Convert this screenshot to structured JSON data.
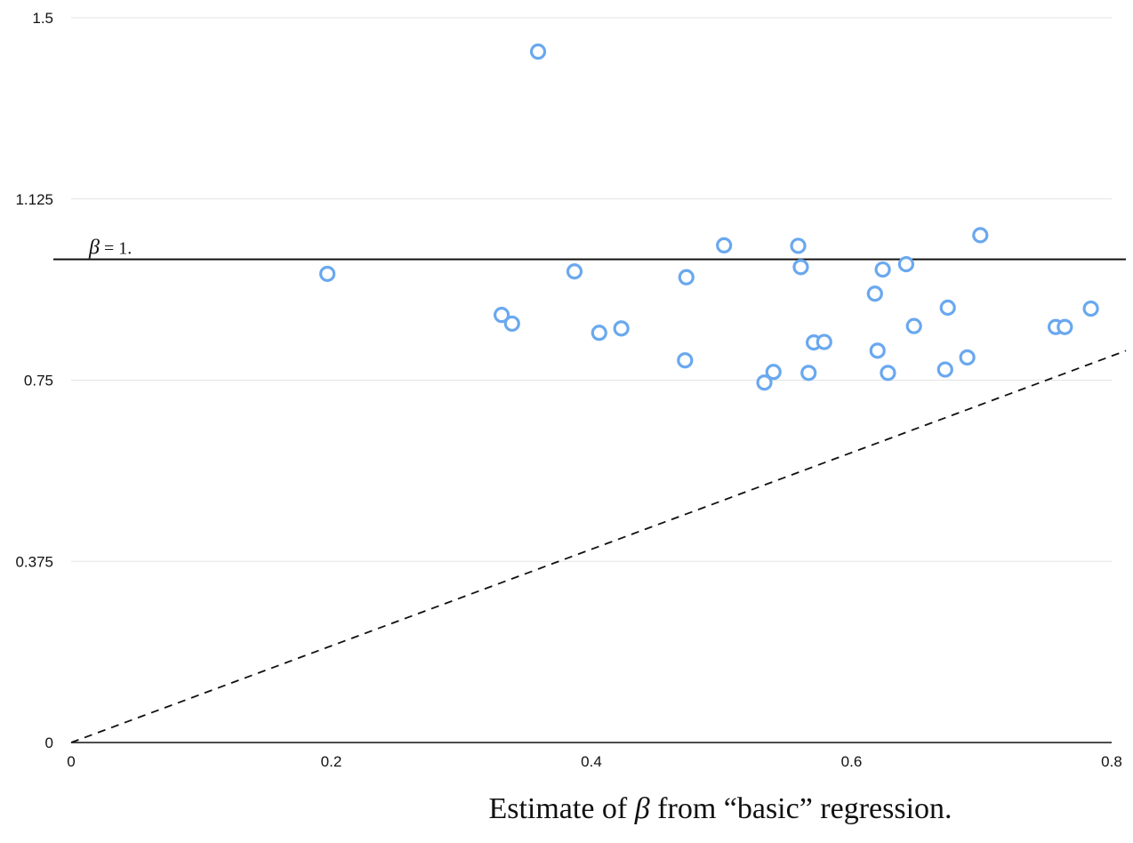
{
  "chart_data": {
    "type": "scatter",
    "xlabel": "Estimate of β from “basic” regression.",
    "xlabel_parts": {
      "prefix": "Estimate of ",
      "symbol": "β",
      "suffix": " from “basic” regression."
    },
    "ylabel": "",
    "xlim": [
      0,
      0.8
    ],
    "ylim": [
      0,
      1.5
    ],
    "x_ticks": [
      "0",
      "0.2",
      "0.4",
      "0.6",
      "0.8"
    ],
    "x_tick_values": [
      0,
      0.2,
      0.4,
      0.6,
      0.8
    ],
    "y_ticks": [
      "0",
      "0.375",
      "0.75",
      "1.125",
      "1.5"
    ],
    "y_tick_values": [
      0,
      0.375,
      0.75,
      1.125,
      1.5
    ],
    "grid": "horizontal",
    "reference_lines": [
      {
        "kind": "horizontal",
        "y": 1.0,
        "style": "solid",
        "label_symbol": "β",
        "label_rest": " = 1."
      },
      {
        "kind": "diagonal",
        "slope": 1,
        "intercept": 0,
        "style": "dashed"
      }
    ],
    "marker": {
      "shape": "open-circle",
      "color": "#6aa8ef"
    },
    "points": [
      {
        "x": 0.197,
        "y": 0.97
      },
      {
        "x": 0.359,
        "y": 1.43
      },
      {
        "x": 0.331,
        "y": 0.885
      },
      {
        "x": 0.339,
        "y": 0.867
      },
      {
        "x": 0.387,
        "y": 0.975
      },
      {
        "x": 0.406,
        "y": 0.848
      },
      {
        "x": 0.423,
        "y": 0.857
      },
      {
        "x": 0.472,
        "y": 0.791
      },
      {
        "x": 0.473,
        "y": 0.963
      },
      {
        "x": 0.502,
        "y": 1.029
      },
      {
        "x": 0.533,
        "y": 0.745
      },
      {
        "x": 0.54,
        "y": 0.767
      },
      {
        "x": 0.559,
        "y": 1.028
      },
      {
        "x": 0.561,
        "y": 0.984
      },
      {
        "x": 0.567,
        "y": 0.765
      },
      {
        "x": 0.571,
        "y": 0.828
      },
      {
        "x": 0.579,
        "y": 0.829
      },
      {
        "x": 0.618,
        "y": 0.929
      },
      {
        "x": 0.62,
        "y": 0.811
      },
      {
        "x": 0.624,
        "y": 0.979
      },
      {
        "x": 0.628,
        "y": 0.765
      },
      {
        "x": 0.642,
        "y": 0.99
      },
      {
        "x": 0.648,
        "y": 0.862
      },
      {
        "x": 0.672,
        "y": 0.772
      },
      {
        "x": 0.674,
        "y": 0.9
      },
      {
        "x": 0.689,
        "y": 0.797
      },
      {
        "x": 0.699,
        "y": 1.05
      },
      {
        "x": 0.757,
        "y": 0.86
      },
      {
        "x": 0.764,
        "y": 0.86
      },
      {
        "x": 0.784,
        "y": 0.898
      }
    ]
  }
}
